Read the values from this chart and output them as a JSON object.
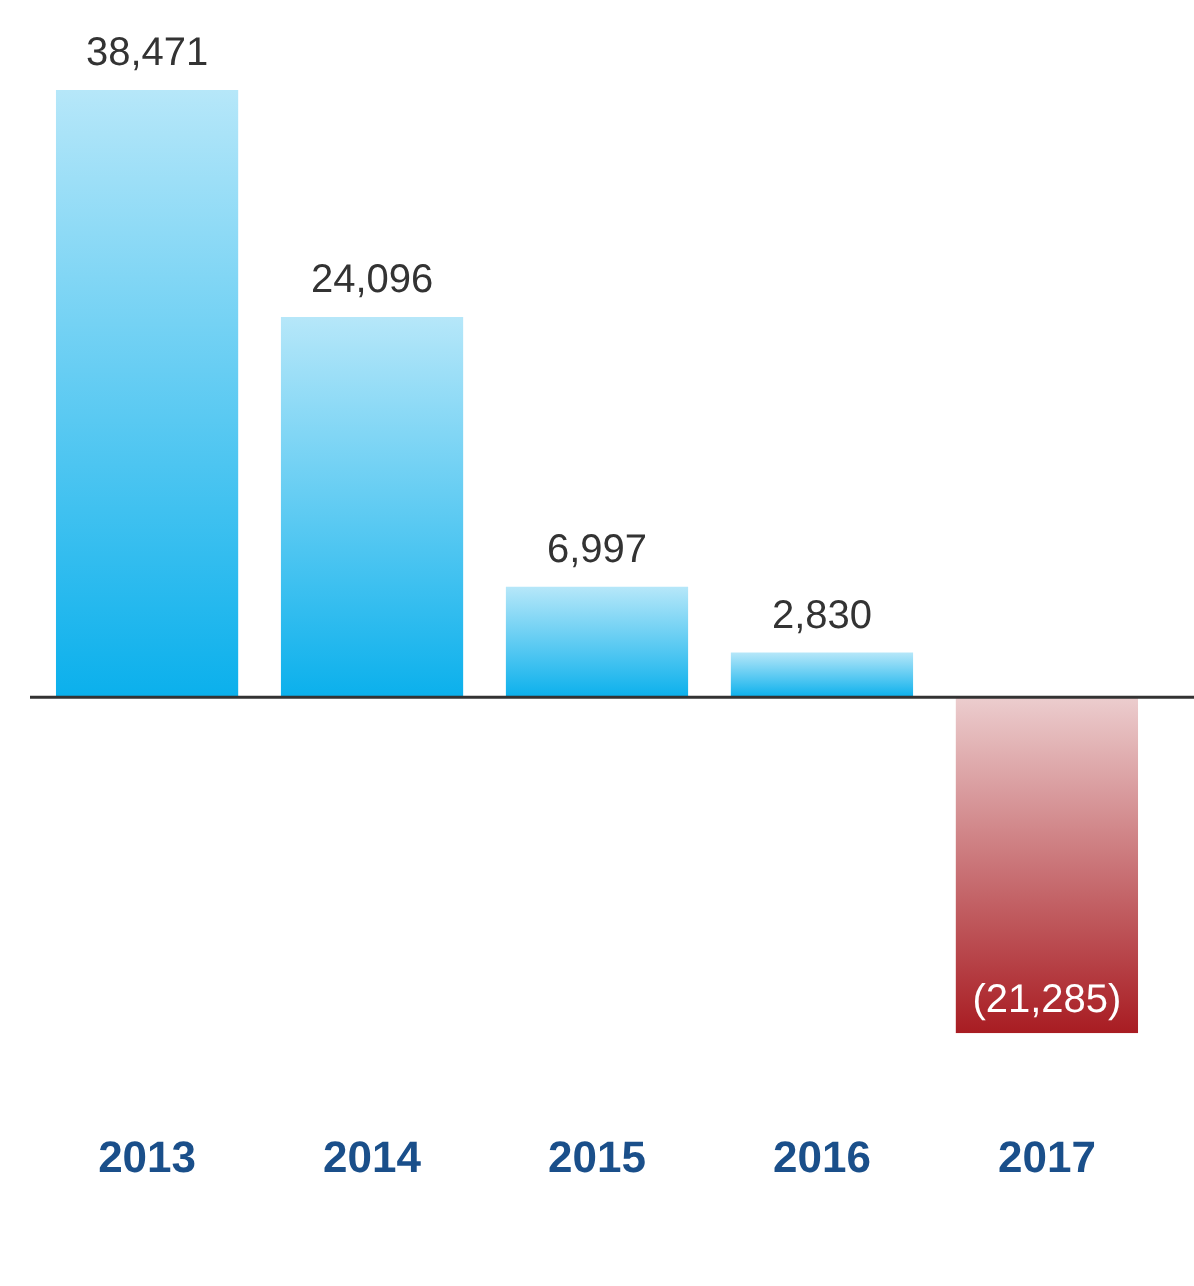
{
  "chart_data": {
    "type": "bar",
    "categories": [
      "2013",
      "2014",
      "2015",
      "2016",
      "2017"
    ],
    "values": [
      38471,
      24096,
      6997,
      2830,
      -21285
    ],
    "colors": [
      "#0bb0ec",
      "#0bb0ec",
      "#0bb0ec",
      "#0bb0ec",
      "#a81c22"
    ],
    "value_labels": [
      "38,471",
      "24,096",
      "6,997",
      "2,830",
      "(21,285)"
    ],
    "grid": false,
    "legend": false
  }
}
